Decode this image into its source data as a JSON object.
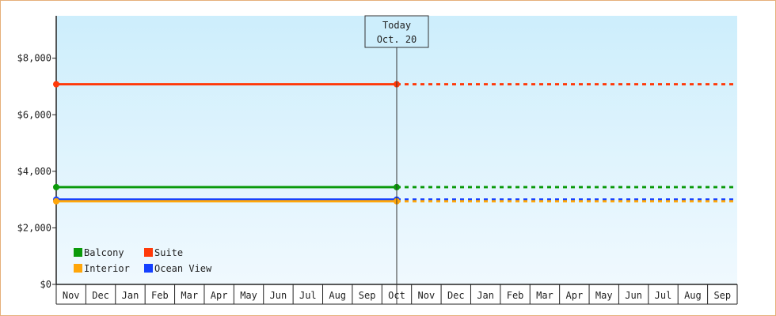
{
  "chart_data": {
    "type": "line",
    "y_ticks": [
      "$0",
      "$2,000",
      "$4,000",
      "$6,000",
      "$8,000"
    ],
    "y_tick_values": [
      0,
      2000,
      4000,
      6000,
      8000
    ],
    "ylim": [
      0,
      9500
    ],
    "months": [
      "Nov",
      "Dec",
      "Jan",
      "Feb",
      "Mar",
      "Apr",
      "May",
      "Jun",
      "Jul",
      "Aug",
      "Sep",
      "Oct",
      "Nov",
      "Dec",
      "Jan",
      "Feb",
      "Mar",
      "Apr",
      "May",
      "Jun",
      "Jul",
      "Aug",
      "Sep"
    ],
    "today": {
      "line1": "Today",
      "line2": "Oct. 20",
      "month_position": 11.5
    },
    "series": [
      {
        "name": "Suite",
        "value": 7080,
        "color": "#ff3a0a"
      },
      {
        "name": "Balcony",
        "value": 3440,
        "color": "#0a9a0a"
      },
      {
        "name": "Ocean View",
        "value": 3000,
        "color": "#1440ff"
      },
      {
        "name": "Interior",
        "value": 2940,
        "color": "#ffa60a"
      }
    ],
    "legend": [
      {
        "name": "Balcony",
        "color": "#0a9a0a"
      },
      {
        "name": "Suite",
        "color": "#ff3a0a"
      },
      {
        "name": "Interior",
        "color": "#ffa60a"
      },
      {
        "name": "Ocean View",
        "color": "#1440ff"
      }
    ],
    "grid": false,
    "legend_placement": "bottom-left",
    "background_gradient": [
      "#cdeefc",
      "#f0f9fe"
    ]
  }
}
